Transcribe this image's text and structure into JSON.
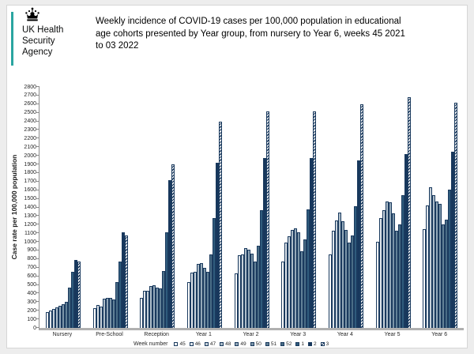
{
  "header": {
    "logo": {
      "lines": [
        "UK Health",
        "Security",
        "Agency"
      ],
      "accent_color": "#2aa5a0",
      "crown_color": "#000000"
    },
    "title_lines": [
      "Weekly incidence of COVID-19 cases per 100,000 population in educational",
      "age cohorts presented by Year group, from nursery to Year 6, weeks 45 2021",
      "to 03 2022"
    ]
  },
  "chart_data": {
    "type": "bar",
    "title": "Weekly incidence of COVID-19 cases per 100,000 population in educational age cohorts presented by Year group, from nursery to Year 6, weeks 45 2021 to 03 2022",
    "ylabel": "Case rate per 100,000 population",
    "ylim": [
      0,
      2800
    ],
    "ytick_step": 100,
    "grid": false,
    "legend_title": "Week number",
    "legend_position": "bottom",
    "categories": [
      "Nursery",
      "Pre-School",
      "Reception",
      "Year 1",
      "Year 2",
      "Year 3",
      "Year 4",
      "Year 5",
      "Year 6"
    ],
    "series": [
      {
        "name": "45",
        "color": "#ffffff",
        "hatched": false,
        "values": [
          185,
          230,
          350,
          530,
          630,
          775,
          850,
          1005,
          1150
        ]
      },
      {
        "name": "46",
        "color": "#dfe5eb",
        "hatched": false,
        "values": [
          205,
          265,
          430,
          645,
          845,
          990,
          1125,
          1280,
          1425
        ]
      },
      {
        "name": "47",
        "color": "#c6d1da",
        "hatched": false,
        "values": [
          220,
          245,
          435,
          650,
          855,
          1065,
          1250,
          1365,
          1630
        ]
      },
      {
        "name": "48",
        "color": "#adbdc9",
        "hatched": false,
        "values": [
          240,
          340,
          485,
          740,
          930,
          1135,
          1340,
          1470,
          1545
        ]
      },
      {
        "name": "49",
        "color": "#94a9b9",
        "hatched": false,
        "values": [
          255,
          350,
          500,
          755,
          905,
          1155,
          1235,
          1460,
          1465
        ]
      },
      {
        "name": "50",
        "color": "#7b95a8",
        "hatched": false,
        "values": [
          280,
          345,
          470,
          695,
          865,
          1110,
          1140,
          1335,
          1440
        ]
      },
      {
        "name": "51",
        "color": "#628197",
        "hatched": false,
        "values": [
          305,
          335,
          455,
          650,
          770,
          890,
          990,
          1125,
          1200
        ]
      },
      {
        "name": "52",
        "color": "#4a6d86",
        "hatched": false,
        "values": [
          470,
          530,
          660,
          855,
          955,
          1030,
          1075,
          1200,
          1255
        ]
      },
      {
        "name": "1",
        "color": "#2f5b7c",
        "hatched": false,
        "values": [
          650,
          775,
          1110,
          1280,
          1370,
          1375,
          1415,
          1545,
          1610
        ]
      },
      {
        "name": "2",
        "color": "#17375c",
        "hatched": false,
        "values": [
          790,
          1110,
          1720,
          1920,
          1975,
          1970,
          1950,
          2020,
          2045
        ]
      },
      {
        "name": "3",
        "color": "#17375c",
        "hatched": true,
        "values": [
          770,
          1075,
          1905,
          2395,
          2520,
          2520,
          2595,
          2680,
          2620
        ]
      }
    ]
  }
}
